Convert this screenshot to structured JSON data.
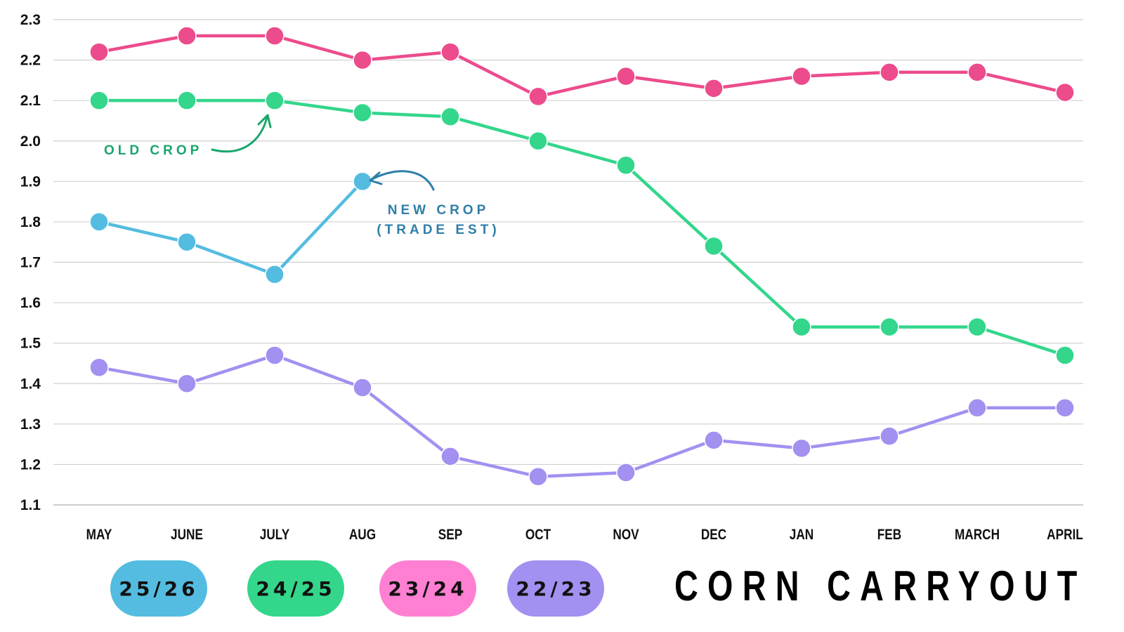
{
  "chart_data": {
    "type": "line",
    "title": "CORN CARRYOUT",
    "categories": [
      "MAY",
      "JUNE",
      "JULY",
      "AUG",
      "SEP",
      "OCT",
      "NOV",
      "DEC",
      "JAN",
      "FEB",
      "MARCH",
      "APRIL"
    ],
    "ylim": [
      1.1,
      2.3
    ],
    "yticks": [
      "1.1",
      "1.2",
      "1.3",
      "1.4",
      "1.5",
      "1.6",
      "1.7",
      "1.8",
      "1.9",
      "2.0",
      "2.1",
      "2.2",
      "2.3"
    ],
    "grid": true,
    "series": [
      {
        "name": "23/24",
        "color": "#ec4b8c",
        "legend_color": "#ff80d2",
        "values": [
          2.22,
          2.26,
          2.26,
          2.2,
          2.22,
          2.11,
          2.16,
          2.13,
          2.16,
          2.17,
          2.17,
          2.12
        ]
      },
      {
        "name": "24/25",
        "color": "#33d68b",
        "legend_color": "#33d68b",
        "values": [
          2.1,
          2.1,
          2.1,
          2.07,
          2.06,
          2.0,
          1.94,
          1.74,
          1.54,
          1.54,
          1.54,
          1.47
        ]
      },
      {
        "name": "25/26",
        "color": "#54bce0",
        "legend_color": "#54bce0",
        "values": [
          1.8,
          1.75,
          1.67,
          1.9,
          null,
          null,
          null,
          null,
          null,
          null,
          null,
          null
        ]
      },
      {
        "name": "22/23",
        "color": "#a390f0",
        "legend_color": "#a390f0",
        "values": [
          1.44,
          1.4,
          1.47,
          1.39,
          1.22,
          1.17,
          1.18,
          1.26,
          1.24,
          1.27,
          1.34,
          1.34
        ]
      }
    ],
    "legend_order": [
      "25/26",
      "24/25",
      "23/24",
      "22/23"
    ],
    "annotations": [
      {
        "lines": [
          "OLD CROP"
        ],
        "color": "#19a66b",
        "series": "24/25",
        "points_to": "JULY"
      },
      {
        "lines": [
          "NEW CROP",
          "(TRADE EST)"
        ],
        "color": "#2f7fa8",
        "series": "25/26",
        "points_to": "AUG"
      }
    ]
  }
}
